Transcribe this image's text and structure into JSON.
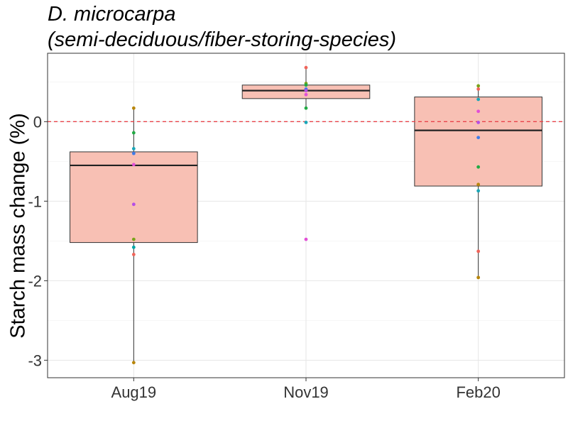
{
  "chart_data": {
    "type": "box",
    "title_line1": "D. microcarpa",
    "title_line2": "(semi-deciduous/fiber-storing-species)",
    "xlabel": "",
    "ylabel": "Starch mass change (%)",
    "categories": [
      "Aug19",
      "Nov19",
      "Feb20"
    ],
    "ylim": [
      -3.22,
      0.86
    ],
    "yticks": [
      -3,
      -2,
      -1,
      0
    ],
    "ytick_labels": [
      "-3",
      "-2",
      "-1",
      "0"
    ],
    "reference_line": {
      "y": 0,
      "style": "dashed",
      "color": "#e8434a"
    },
    "grid": true,
    "box_fill": "#f8c0b4",
    "box_stroke": "#333333",
    "boxes": [
      {
        "category": "Aug19",
        "q1": -1.52,
        "median": -0.55,
        "q3": -0.38,
        "whisker_low": -3.03,
        "whisker_high": 0.17
      },
      {
        "category": "Nov19",
        "q1": 0.29,
        "median": 0.39,
        "q3": 0.46,
        "whisker_low": 0.17,
        "whisker_high": 0.68
      },
      {
        "category": "Feb20",
        "q1": -0.81,
        "median": -0.11,
        "q3": 0.31,
        "whisker_low": -1.96,
        "whisker_high": 0.45
      }
    ],
    "points": [
      {
        "category": "Aug19",
        "y": 0.17,
        "color": "#b8860b"
      },
      {
        "category": "Aug19",
        "y": -0.14,
        "color": "#22aa44"
      },
      {
        "category": "Aug19",
        "y": -0.34,
        "color": "#1aa6b7"
      },
      {
        "category": "Aug19",
        "y": -0.4,
        "color": "#3e7be8"
      },
      {
        "category": "Aug19",
        "y": -0.54,
        "color": "#e24fd6"
      },
      {
        "category": "Aug19",
        "y": -1.04,
        "color": "#b54ee6"
      },
      {
        "category": "Aug19",
        "y": -1.48,
        "color": "#7aa31a"
      },
      {
        "category": "Aug19",
        "y": -1.58,
        "color": "#00a6a6"
      },
      {
        "category": "Aug19",
        "y": -1.67,
        "color": "#f0645a"
      },
      {
        "category": "Aug19",
        "y": -3.03,
        "color": "#b8860b"
      },
      {
        "category": "Nov19",
        "y": 0.68,
        "color": "#f0645a"
      },
      {
        "category": "Nov19",
        "y": 0.48,
        "color": "#7aa31a"
      },
      {
        "category": "Nov19",
        "y": 0.46,
        "color": "#22aa44"
      },
      {
        "category": "Nov19",
        "y": 0.41,
        "color": "#3e7be8"
      },
      {
        "category": "Nov19",
        "y": 0.39,
        "color": "#b54ee6"
      },
      {
        "category": "Nov19",
        "y": 0.34,
        "color": "#e24fd6"
      },
      {
        "category": "Nov19",
        "y": 0.17,
        "color": "#22aa44"
      },
      {
        "category": "Nov19",
        "y": -0.01,
        "color": "#1aa6b7"
      },
      {
        "category": "Nov19",
        "y": -1.48,
        "color": "#e24fd6"
      },
      {
        "category": "Feb20",
        "y": 0.45,
        "color": "#7aa31a"
      },
      {
        "category": "Feb20",
        "y": 0.41,
        "color": "#f0645a"
      },
      {
        "category": "Feb20",
        "y": 0.28,
        "color": "#1aa6b7"
      },
      {
        "category": "Feb20",
        "y": 0.13,
        "color": "#e24fd6"
      },
      {
        "category": "Feb20",
        "y": -0.01,
        "color": "#b54ee6"
      },
      {
        "category": "Feb20",
        "y": -0.2,
        "color": "#3e7be8"
      },
      {
        "category": "Feb20",
        "y": -0.57,
        "color": "#22aa44"
      },
      {
        "category": "Feb20",
        "y": -0.79,
        "color": "#b8860b"
      },
      {
        "category": "Feb20",
        "y": -0.87,
        "color": "#1aa6b7"
      },
      {
        "category": "Feb20",
        "y": -1.63,
        "color": "#f0645a"
      },
      {
        "category": "Feb20",
        "y": -1.96,
        "color": "#b8860b"
      }
    ]
  }
}
